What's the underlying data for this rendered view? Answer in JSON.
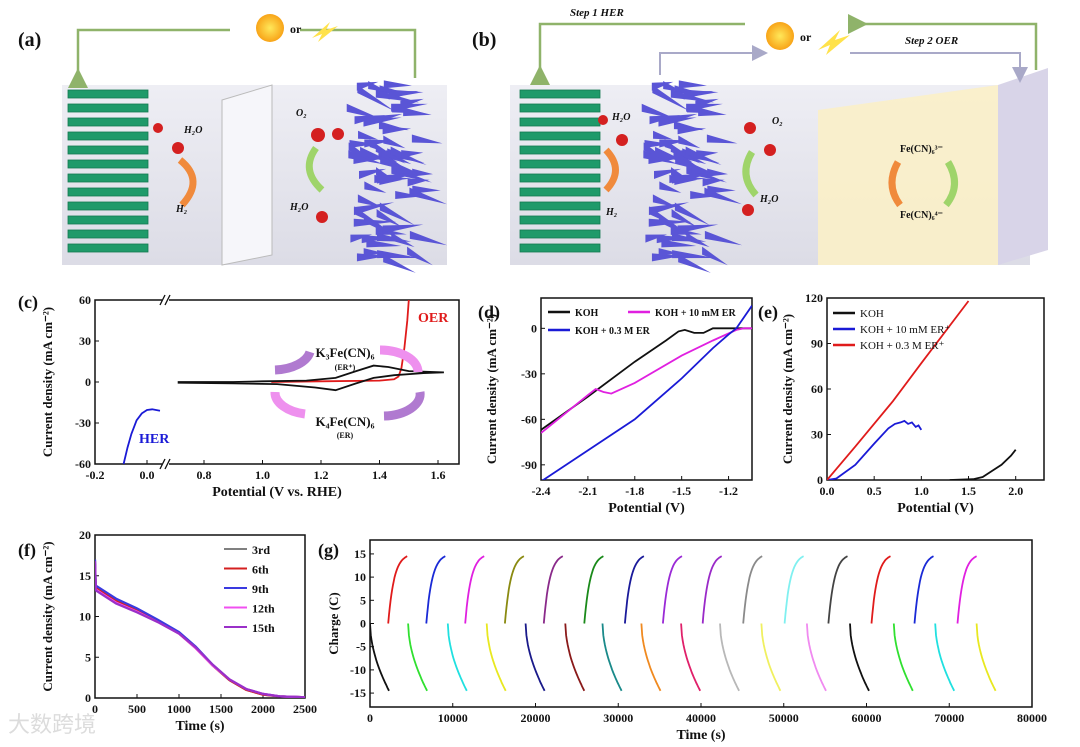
{
  "panel_labels": {
    "a": "(a)",
    "b": "(b)",
    "c": "(c)",
    "d": "(d)",
    "e": "(e)",
    "f": "(f)",
    "g": "(g)"
  },
  "schematic_a": {
    "power_or": "or",
    "h2o_top": "H₂O",
    "h2": "H₂",
    "o2": "O₂",
    "h2o_bottom": "H₂O",
    "colors": {
      "cathode": "#1f9a6a",
      "anode": "#5a55d6",
      "wire": "#8fb36a",
      "arrow_her": "#f08a3c",
      "arrow_oer": "#9fd46a"
    }
  },
  "schematic_b": {
    "step1": "Step 1 HER",
    "step2": "Step 2 OER",
    "power_or": "or",
    "h2o_top": "H₂O",
    "h2": "H₂",
    "o2": "O₂",
    "h2o_bottom": "H₂O",
    "fe3": "Fe(CN)₆³⁻",
    "fe4": "Fe(CN)₆⁴⁻",
    "colors": {
      "mediator": "#fbefc8",
      "wire2": "#a9a9c8"
    }
  },
  "watermark": "大数跨境",
  "chart_data": [
    {
      "id": "c",
      "type": "line",
      "xlabel": "Potential (V vs. RHE)",
      "ylabel": "Current density (mA cm⁻²)",
      "xlim": [
        -0.2,
        1.65
      ],
      "x_break": [
        0.07,
        0.72
      ],
      "ylim": [
        -60,
        60
      ],
      "xticks": [
        -0.2,
        0.0,
        0.8,
        1.0,
        1.2,
        1.4,
        1.6
      ],
      "xtick_labels": [
        "-0.2",
        "0.0",
        "0.8",
        "1.0",
        "1.2",
        "1.4",
        "1.6"
      ],
      "yticks": [
        -60,
        -30,
        0,
        30,
        60
      ],
      "ytick_labels": [
        "-60",
        "-30",
        "0",
        "30",
        "60"
      ],
      "annotations": {
        "her": "HER",
        "oer": "OER",
        "k3": "K₃Fe(CN)₆",
        "k3_sub": "(ER⁺)",
        "k4": "K₄Fe(CN)₆",
        "k4_sub": "(ER)"
      },
      "series": [
        {
          "name": "HER",
          "color": "#1a1ad6",
          "points": [
            [
              -0.09,
              -60
            ],
            [
              -0.075,
              -48
            ],
            [
              -0.06,
              -38
            ],
            [
              -0.04,
              -28
            ],
            [
              -0.02,
              -23
            ],
            [
              0.0,
              -20.5
            ],
            [
              0.02,
              -20
            ],
            [
              0.05,
              -21
            ]
          ]
        },
        {
          "name": "OER",
          "color": "#e01b1b",
          "points": [
            [
              1.03,
              0
            ],
            [
              1.2,
              0.5
            ],
            [
              1.4,
              1
            ],
            [
              1.45,
              2
            ],
            [
              1.465,
              4
            ],
            [
              1.475,
              10
            ],
            [
              1.485,
              25
            ],
            [
              1.495,
              45
            ],
            [
              1.5,
              60
            ]
          ]
        },
        {
          "name": "CV ER",
          "color": "#111111",
          "points": [
            [
              0.71,
              0
            ],
            [
              0.9,
              0
            ],
            [
              1.0,
              0.5
            ],
            [
              1.15,
              1
            ],
            [
              1.25,
              3
            ],
            [
              1.32,
              8
            ],
            [
              1.38,
              12
            ],
            [
              1.43,
              11
            ],
            [
              1.5,
              8
            ],
            [
              1.62,
              7
            ],
            [
              1.55,
              6.5
            ],
            [
              1.45,
              5
            ],
            [
              1.38,
              3
            ],
            [
              1.32,
              -1
            ],
            [
              1.25,
              -6
            ],
            [
              1.18,
              -4
            ],
            [
              1.05,
              -1.5
            ],
            [
              0.9,
              -1
            ],
            [
              0.71,
              -0.5
            ]
          ]
        }
      ]
    },
    {
      "id": "d",
      "type": "line",
      "xlabel": "Potential (V)",
      "ylabel": "Current density (mA cm⁻²)",
      "xlim": [
        -2.4,
        -1.05
      ],
      "ylim": [
        -100,
        20
      ],
      "xticks": [
        -2.4,
        -2.1,
        -1.8,
        -1.5,
        -1.2
      ],
      "xtick_labels": [
        "-2.4",
        "-2.1",
        "-1.8",
        "-1.5",
        "-1.2"
      ],
      "yticks": [
        -90,
        -60,
        -30,
        0
      ],
      "ytick_labels": [
        "-90",
        "-60",
        "-30",
        "0"
      ],
      "legend": "top",
      "series": [
        {
          "name": "KOH",
          "color": "#111111",
          "points": [
            [
              -2.4,
              -67
            ],
            [
              -2.1,
              -45
            ],
            [
              -1.8,
              -22
            ],
            [
              -1.6,
              -8
            ],
            [
              -1.52,
              -2
            ],
            [
              -1.48,
              -1
            ],
            [
              -1.42,
              -3
            ],
            [
              -1.36,
              -3
            ],
            [
              -1.3,
              0
            ],
            [
              -1.05,
              0
            ]
          ]
        },
        {
          "name": "KOH + 10 mM ER",
          "color": "#e020e0",
          "points": [
            [
              -2.4,
              -69
            ],
            [
              -2.1,
              -44
            ],
            [
              -2.05,
              -40
            ],
            [
              -2.0,
              -42
            ],
            [
              -1.95,
              -43
            ],
            [
              -1.8,
              -36
            ],
            [
              -1.5,
              -18
            ],
            [
              -1.3,
              -8
            ],
            [
              -1.15,
              -1
            ],
            [
              -1.1,
              0
            ],
            [
              -1.05,
              0
            ]
          ]
        },
        {
          "name": "KOH + 0.3 M ER",
          "color": "#1a1ad6",
          "points": [
            [
              -2.4,
              -101
            ],
            [
              -1.8,
              -60
            ],
            [
              -1.5,
              -33
            ],
            [
              -1.3,
              -13
            ],
            [
              -1.2,
              -4
            ],
            [
              -1.15,
              0
            ],
            [
              -1.05,
              15
            ]
          ]
        }
      ]
    },
    {
      "id": "e",
      "type": "line",
      "xlabel": "Potential (V)",
      "ylabel": "Current density (mA cm⁻²)",
      "xlim": [
        0,
        2.3
      ],
      "ylim": [
        0,
        120
      ],
      "xticks": [
        0,
        0.5,
        1.0,
        1.5,
        2.0
      ],
      "xtick_labels": [
        "0.0",
        "0.5",
        "1.0",
        "1.5",
        "2.0"
      ],
      "yticks": [
        0,
        30,
        60,
        90,
        120
      ],
      "ytick_labels": [
        "0",
        "30",
        "60",
        "90",
        "120"
      ],
      "legend": "top-left",
      "series": [
        {
          "name": "KOH",
          "color": "#111111",
          "points": [
            [
              1.3,
              0
            ],
            [
              1.55,
              0.5
            ],
            [
              1.65,
              2
            ],
            [
              1.75,
              6
            ],
            [
              1.85,
              10
            ],
            [
              1.95,
              16
            ],
            [
              2.0,
              20
            ]
          ]
        },
        {
          "name": "KOH + 10 mM ER⁺",
          "color": "#1a1ad6",
          "points": [
            [
              0,
              0
            ],
            [
              0.1,
              1
            ],
            [
              0.3,
              10
            ],
            [
              0.5,
              24
            ],
            [
              0.65,
              34
            ],
            [
              0.72,
              37
            ],
            [
              0.78,
              38
            ],
            [
              0.82,
              39
            ],
            [
              0.86,
              37
            ],
            [
              0.9,
              38
            ],
            [
              0.94,
              35
            ],
            [
              0.97,
              36
            ],
            [
              1.0,
              33
            ]
          ]
        },
        {
          "name": "KOH + 0.3 M ER⁺",
          "color": "#e01b1b",
          "points": [
            [
              0,
              0
            ],
            [
              0.3,
              22
            ],
            [
              0.7,
              52
            ],
            [
              1.0,
              77
            ],
            [
              1.5,
              118
            ]
          ]
        }
      ]
    },
    {
      "id": "f",
      "type": "line",
      "xlabel": "Time (s)",
      "ylabel": "Current density (mA cm⁻²)",
      "xlim": [
        0,
        2500
      ],
      "ylim": [
        0,
        20
      ],
      "xticks": [
        0,
        500,
        1000,
        1500,
        2000,
        2500
      ],
      "xtick_labels": [
        "0",
        "500",
        "1000",
        "1500",
        "2000",
        "2500"
      ],
      "yticks": [
        0,
        5,
        10,
        15,
        20
      ],
      "ytick_labels": [
        "0",
        "5",
        "10",
        "15",
        "20"
      ],
      "legend": "top-right",
      "x": [
        0,
        10,
        250,
        500,
        750,
        1000,
        1200,
        1400,
        1600,
        1800,
        2000,
        2200,
        2500
      ],
      "series": [
        {
          "name": "3rd",
          "color": "#808080",
          "values": [
            17,
            13.6,
            12.0,
            10.8,
            9.5,
            8.0,
            6.2,
            4.0,
            2.2,
            1.0,
            0.4,
            0.2,
            0.1
          ]
        },
        {
          "name": "6th",
          "color": "#d42020",
          "values": [
            16.5,
            13.5,
            11.9,
            10.7,
            9.4,
            7.9,
            6.1,
            4.0,
            2.2,
            1.0,
            0.4,
            0.2,
            0.1
          ]
        },
        {
          "name": "9th",
          "color": "#3a3ae0",
          "values": [
            17,
            13.8,
            12.2,
            11.0,
            9.6,
            8.1,
            6.3,
            4.1,
            2.3,
            1.1,
            0.5,
            0.2,
            0.1
          ]
        },
        {
          "name": "12th",
          "color": "#f050f0",
          "values": [
            16.5,
            13.3,
            11.7,
            10.6,
            9.3,
            7.9,
            6.1,
            4.0,
            2.3,
            1.1,
            0.5,
            0.2,
            0.1
          ]
        },
        {
          "name": "15th",
          "color": "#9a30c8",
          "values": [
            16.8,
            13.2,
            11.6,
            10.5,
            9.3,
            7.9,
            6.2,
            4.1,
            2.3,
            1.1,
            0.5,
            0.2,
            0.1
          ]
        }
      ]
    },
    {
      "id": "g",
      "type": "line",
      "xlabel": "Time (s)",
      "ylabel": "Charge (C)",
      "xlim": [
        0,
        80000
      ],
      "ylim": [
        -18,
        18
      ],
      "xticks": [
        0,
        10000,
        20000,
        30000,
        40000,
        50000,
        60000,
        70000,
        80000
      ],
      "xtick_labels": [
        "0",
        "10000",
        "20000",
        "30000",
        "40000",
        "50000",
        "60000",
        "70000",
        "80000"
      ],
      "yticks": [
        -15,
        -10,
        -5,
        0,
        5,
        10,
        15
      ],
      "ytick_labels": [
        "-15",
        "-10",
        "-5",
        "0",
        "5",
        "10",
        "15"
      ],
      "cycle_charge_max": 14.5,
      "cycle_discharge_min": -14.5,
      "segment_duration_s": 2300,
      "charge_segments": [
        {
          "start": 2200,
          "color": "#e01b1b"
        },
        {
          "start": 6800,
          "color": "#1a2ad6"
        },
        {
          "start": 11500,
          "color": "#e020e0"
        },
        {
          "start": 16300,
          "color": "#8a8a10"
        },
        {
          "start": 21000,
          "color": "#8a2a8a"
        },
        {
          "start": 25900,
          "color": "#1a8a1a"
        },
        {
          "start": 30800,
          "color": "#1a1a9a"
        },
        {
          "start": 35400,
          "color": "#9a2ad6"
        },
        {
          "start": 40200,
          "color": "#9a2ac8"
        },
        {
          "start": 45100,
          "color": "#8a8a8a"
        },
        {
          "start": 50100,
          "color": "#80f0f0"
        },
        {
          "start": 55400,
          "color": "#444444"
        },
        {
          "start": 60600,
          "color": "#e01b1b"
        },
        {
          "start": 65800,
          "color": "#1a2ad6"
        },
        {
          "start": 71000,
          "color": "#e020e0"
        }
      ],
      "discharge_segments": [
        {
          "start": 0,
          "color": "#111111"
        },
        {
          "start": 4600,
          "color": "#30e030"
        },
        {
          "start": 9400,
          "color": "#20e0e0"
        },
        {
          "start": 14100,
          "color": "#e8e820"
        },
        {
          "start": 18800,
          "color": "#1a1a8a"
        },
        {
          "start": 23600,
          "color": "#8a1a1a"
        },
        {
          "start": 28100,
          "color": "#1a8a8a"
        },
        {
          "start": 32800,
          "color": "#f08a20"
        },
        {
          "start": 37600,
          "color": "#e0206a"
        },
        {
          "start": 42300,
          "color": "#b8b8b8"
        },
        {
          "start": 47300,
          "color": "#f0f060"
        },
        {
          "start": 52800,
          "color": "#f08af0"
        },
        {
          "start": 58000,
          "color": "#111111"
        },
        {
          "start": 63300,
          "color": "#30e030"
        },
        {
          "start": 68300,
          "color": "#20e0e0"
        },
        {
          "start": 73300,
          "color": "#e8e820"
        }
      ]
    }
  ]
}
